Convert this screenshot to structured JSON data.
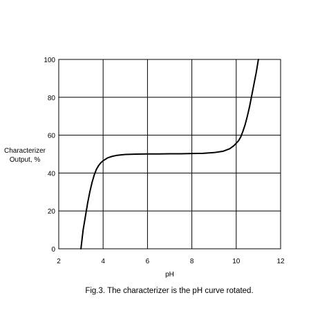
{
  "chart_data": {
    "type": "line",
    "title": "",
    "caption": "Fig.3. The characterizer is the pH curve rotated.",
    "xlabel": "pH",
    "ylabel_lines": [
      "Characterizer",
      "Output, %"
    ],
    "xlim": [
      2,
      12
    ],
    "ylim": [
      0,
      100
    ],
    "xticks": [
      2,
      4,
      6,
      8,
      10,
      12
    ],
    "yticks": [
      0,
      20,
      40,
      60,
      80,
      100
    ],
    "grid": true,
    "series": [
      {
        "color": "#000000",
        "x": [
          3.0,
          3.05,
          3.1,
          3.2,
          3.3,
          3.4,
          3.5,
          3.6,
          3.7,
          3.8,
          3.9,
          4.0,
          4.2,
          4.4,
          4.6,
          4.8,
          5.0,
          5.5,
          6.0,
          6.5,
          7.0,
          7.5,
          8.0,
          8.5,
          9.0,
          9.4,
          9.7,
          9.9,
          10.1,
          10.2,
          10.3,
          10.4,
          10.5,
          10.6,
          10.7,
          10.8,
          10.9,
          11.0
        ],
        "y": [
          0,
          5,
          10,
          17,
          24,
          30,
          35,
          39,
          42,
          44,
          45.5,
          46.5,
          48,
          48.8,
          49.3,
          49.6,
          49.8,
          50,
          50.1,
          50.1,
          50.2,
          50.2,
          50.3,
          50.4,
          50.8,
          51.5,
          52.8,
          54.5,
          57,
          59,
          62,
          65.5,
          70,
          75,
          81,
          87,
          93,
          100
        ]
      }
    ]
  }
}
